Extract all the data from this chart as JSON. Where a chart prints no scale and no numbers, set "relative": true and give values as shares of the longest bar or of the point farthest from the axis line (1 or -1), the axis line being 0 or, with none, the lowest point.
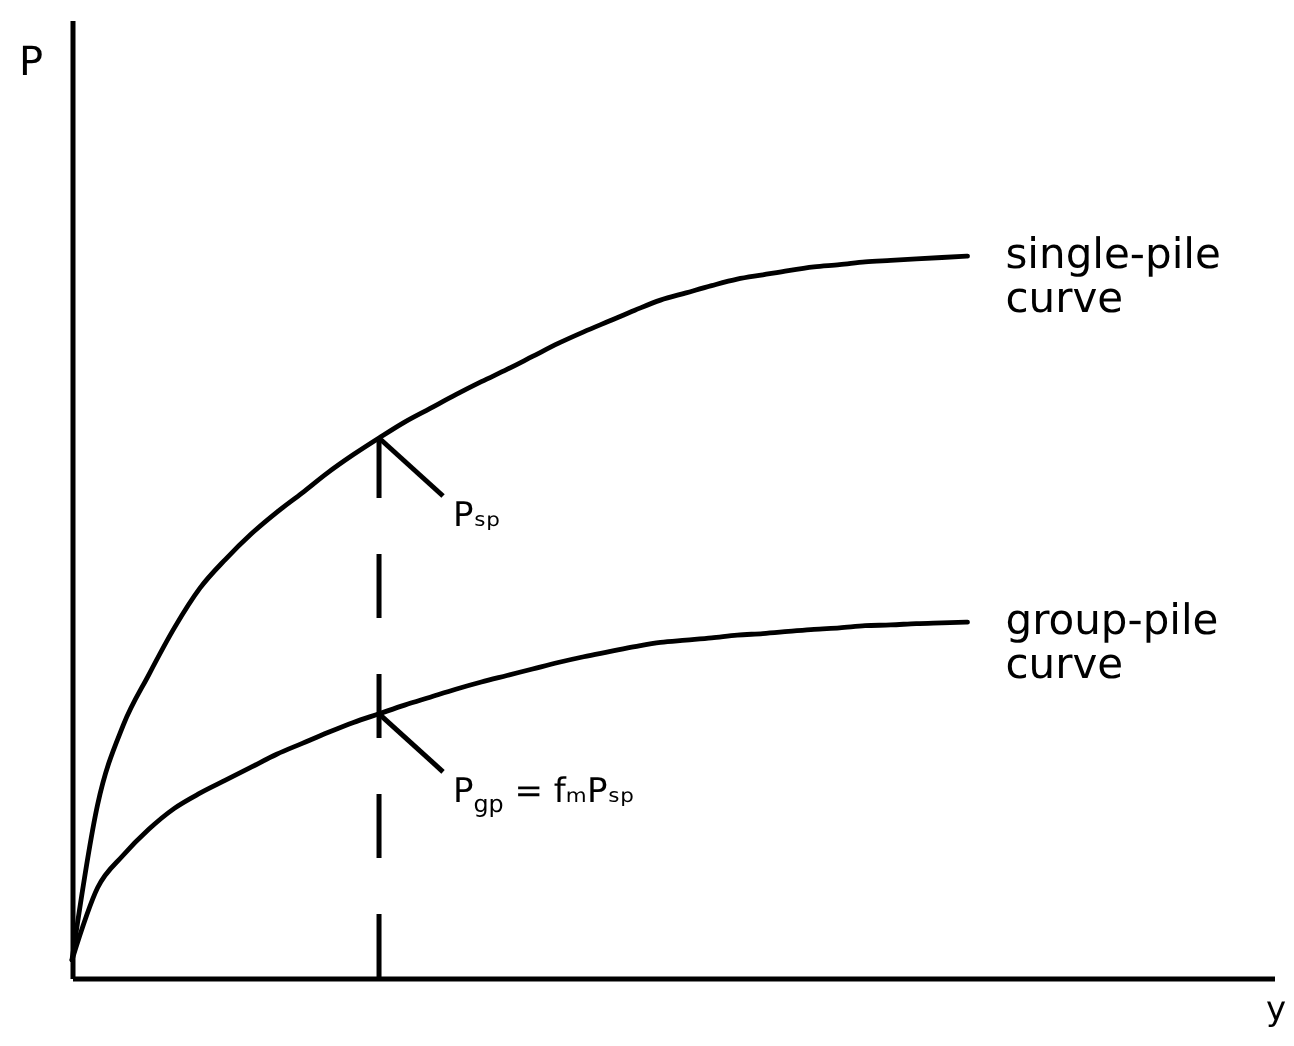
{
  "chart_data": {
    "type": "line",
    "ylabel": "P",
    "relative": true,
    "categories": [
      null,
      null,
      null,
      null,
      null,
      null,
      null,
      null,
      null,
      null,
      null,
      null,
      null,
      null,
      null,
      null,
      null,
      null,
      null,
      null,
      null,
      null,
      null,
      null,
      null,
      null,
      null,
      null,
      null,
      null,
      null,
      null,
      null,
      null,
      null,
      null
    ],
    "series": [
      {
        "name": "single-pile curve",
        "color": "#000000",
        "values": [
          0.025,
          0.24,
          0.35,
          0.42,
          0.485,
          0.54,
          0.58,
          0.615,
          0.645,
          0.672,
          0.7,
          0.725,
          0.748,
          0.77,
          0.789,
          0.808,
          0.826,
          0.843,
          0.861,
          0.879,
          0.895,
          0.91,
          0.925,
          0.939,
          0.949,
          0.959,
          0.968,
          0.974,
          0.98,
          0.985,
          0.988,
          0.992,
          0.994,
          0.996,
          0.998,
          1.0
        ]
      },
      {
        "name": "group-pile curve",
        "color": "#000000",
        "values": [
          0.025,
          0.125,
          0.17,
          0.206,
          0.235,
          0.256,
          0.274,
          0.292,
          0.31,
          0.325,
          0.34,
          0.354,
          0.366,
          0.378,
          0.389,
          0.4,
          0.41,
          0.419,
          0.428,
          0.437,
          0.445,
          0.452,
          0.459,
          0.465,
          0.468,
          0.471,
          0.475,
          0.477,
          0.48,
          0.483,
          0.485,
          0.488,
          0.489,
          0.491,
          0.492,
          0.493
        ]
      }
    ],
    "annotations": [
      "Pₛₚ",
      "P$_{gp}$ = fₘPₛₚ",
      "y"
    ]
  }
}
